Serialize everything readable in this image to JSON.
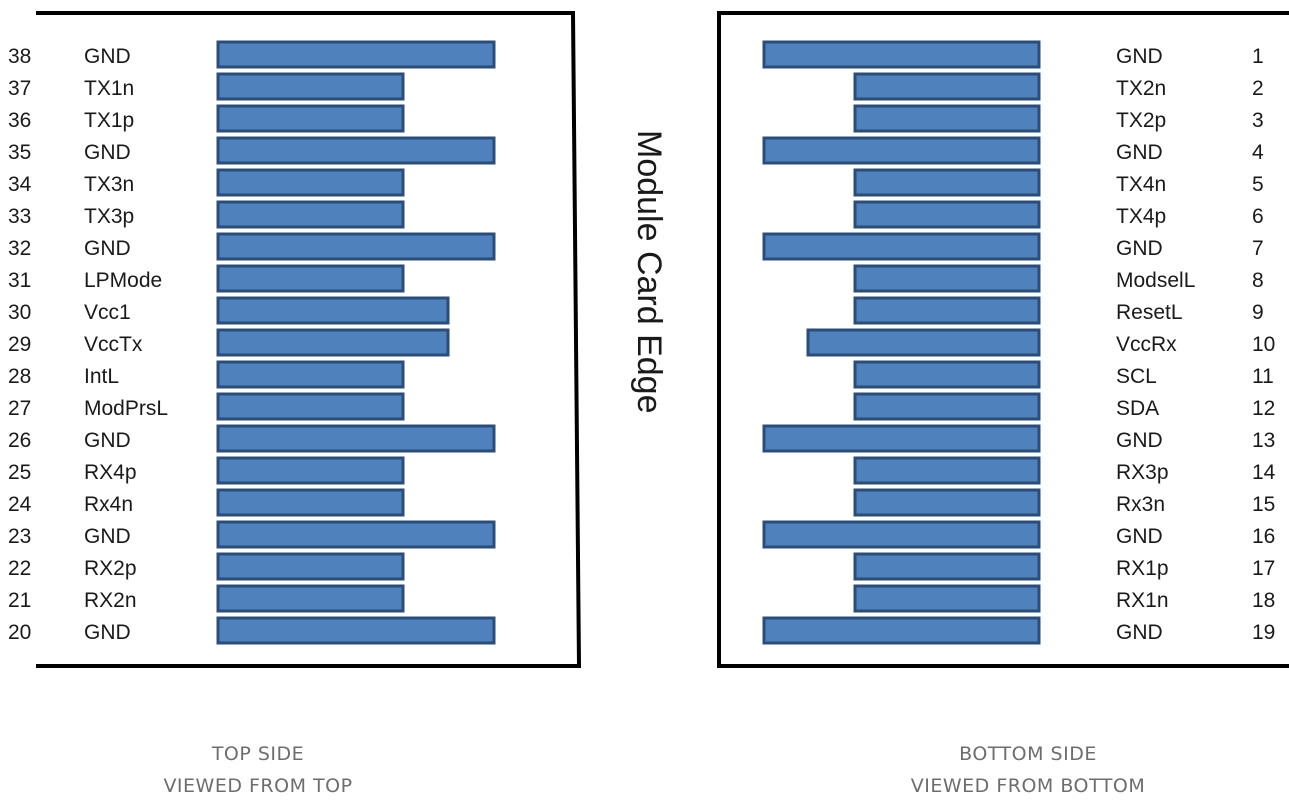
{
  "edge_label": "Module Card Edge",
  "top_side": {
    "caption_line1": "TOP SIDE",
    "caption_line2": "VIEWED FROM TOP",
    "pins": [
      {
        "num": "38",
        "name": "GND",
        "pad": "long"
      },
      {
        "num": "37",
        "name": "TX1n",
        "pad": "short"
      },
      {
        "num": "36",
        "name": "TX1p",
        "pad": "short"
      },
      {
        "num": "35",
        "name": "GND",
        "pad": "long"
      },
      {
        "num": "34",
        "name": "TX3n",
        "pad": "short"
      },
      {
        "num": "33",
        "name": "TX3p",
        "pad": "short"
      },
      {
        "num": "32",
        "name": "GND",
        "pad": "long"
      },
      {
        "num": "31",
        "name": "LPMode",
        "pad": "short"
      },
      {
        "num": "30",
        "name": "Vcc1",
        "pad": "medium"
      },
      {
        "num": "29",
        "name": "VccTx",
        "pad": "medium"
      },
      {
        "num": "28",
        "name": "IntL",
        "pad": "short"
      },
      {
        "num": "27",
        "name": "ModPrsL",
        "pad": "short"
      },
      {
        "num": "26",
        "name": "GND",
        "pad": "long"
      },
      {
        "num": "25",
        "name": "RX4p",
        "pad": "short"
      },
      {
        "num": "24",
        "name": "Rx4n",
        "pad": "short"
      },
      {
        "num": "23",
        "name": "GND",
        "pad": "long"
      },
      {
        "num": "22",
        "name": "RX2p",
        "pad": "short"
      },
      {
        "num": "21",
        "name": "RX2n",
        "pad": "short"
      },
      {
        "num": "20",
        "name": "GND",
        "pad": "long"
      }
    ]
  },
  "bottom_side": {
    "caption_line1": "BOTTOM SIDE",
    "caption_line2": "VIEWED FROM BOTTOM",
    "pins": [
      {
        "num": "1",
        "name": "GND",
        "pad": "long"
      },
      {
        "num": "2",
        "name": "TX2n",
        "pad": "short"
      },
      {
        "num": "3",
        "name": "TX2p",
        "pad": "short"
      },
      {
        "num": "4",
        "name": "GND",
        "pad": "long"
      },
      {
        "num": "5",
        "name": "TX4n",
        "pad": "short"
      },
      {
        "num": "6",
        "name": "TX4p",
        "pad": "short"
      },
      {
        "num": "7",
        "name": "GND",
        "pad": "long"
      },
      {
        "num": "8",
        "name": "ModselL",
        "pad": "short"
      },
      {
        "num": "9",
        "name": "ResetL",
        "pad": "short"
      },
      {
        "num": "10",
        "name": "VccRx",
        "pad": "medium"
      },
      {
        "num": "11",
        "name": "SCL",
        "pad": "short"
      },
      {
        "num": "12",
        "name": "SDA",
        "pad": "short"
      },
      {
        "num": "13",
        "name": "GND",
        "pad": "long"
      },
      {
        "num": "14",
        "name": "RX3p",
        "pad": "short"
      },
      {
        "num": "15",
        "name": "Rx3n",
        "pad": "short"
      },
      {
        "num": "16",
        "name": "GND",
        "pad": "long"
      },
      {
        "num": "17",
        "name": "RX1p",
        "pad": "short"
      },
      {
        "num": "18",
        "name": "RX1n",
        "pad": "short"
      },
      {
        "num": "19",
        "name": "GND",
        "pad": "long"
      }
    ]
  },
  "colors": {
    "pad_fill": "#4f81bd",
    "pad_stroke": "#2c4d75",
    "outline": "#000000",
    "text": "#1a1a1a",
    "caption": "#6d6d6d"
  }
}
